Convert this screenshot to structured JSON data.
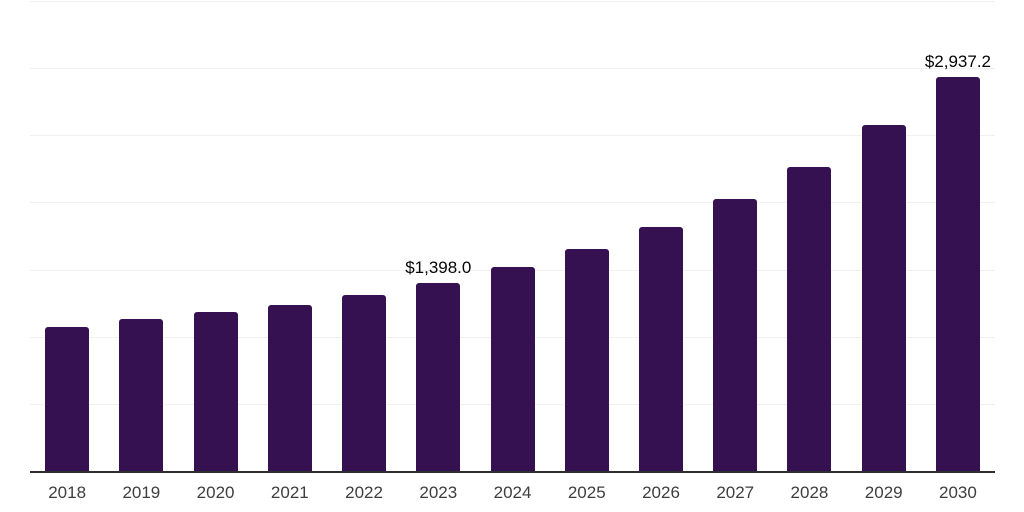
{
  "chart_data": {
    "type": "bar",
    "title": "",
    "xlabel": "",
    "ylabel": "",
    "categories": [
      "2018",
      "2019",
      "2020",
      "2021",
      "2022",
      "2023",
      "2024",
      "2025",
      "2026",
      "2027",
      "2028",
      "2029",
      "2030"
    ],
    "values": [
      1071,
      1130,
      1182,
      1234,
      1309,
      1398.0,
      1517,
      1651,
      1814,
      2023,
      2261,
      2580,
      2937.2
    ],
    "labeled_points": [
      {
        "category": "2023",
        "label": "$1,398.0"
      },
      {
        "category": "2030",
        "label": "$2,937.2"
      }
    ],
    "ylim": [
      0,
      3500
    ],
    "grid_interval": 500,
    "grid": "horizontal",
    "y_tick_labels_visible": false,
    "legend_position": "none",
    "colors": {
      "bar": "#361151",
      "gridline": "#f0f0f0",
      "axis_line": "#2e2e2e",
      "tick_label": "#3e3e3e",
      "data_label": "#050505",
      "background": "#ffffff"
    }
  }
}
